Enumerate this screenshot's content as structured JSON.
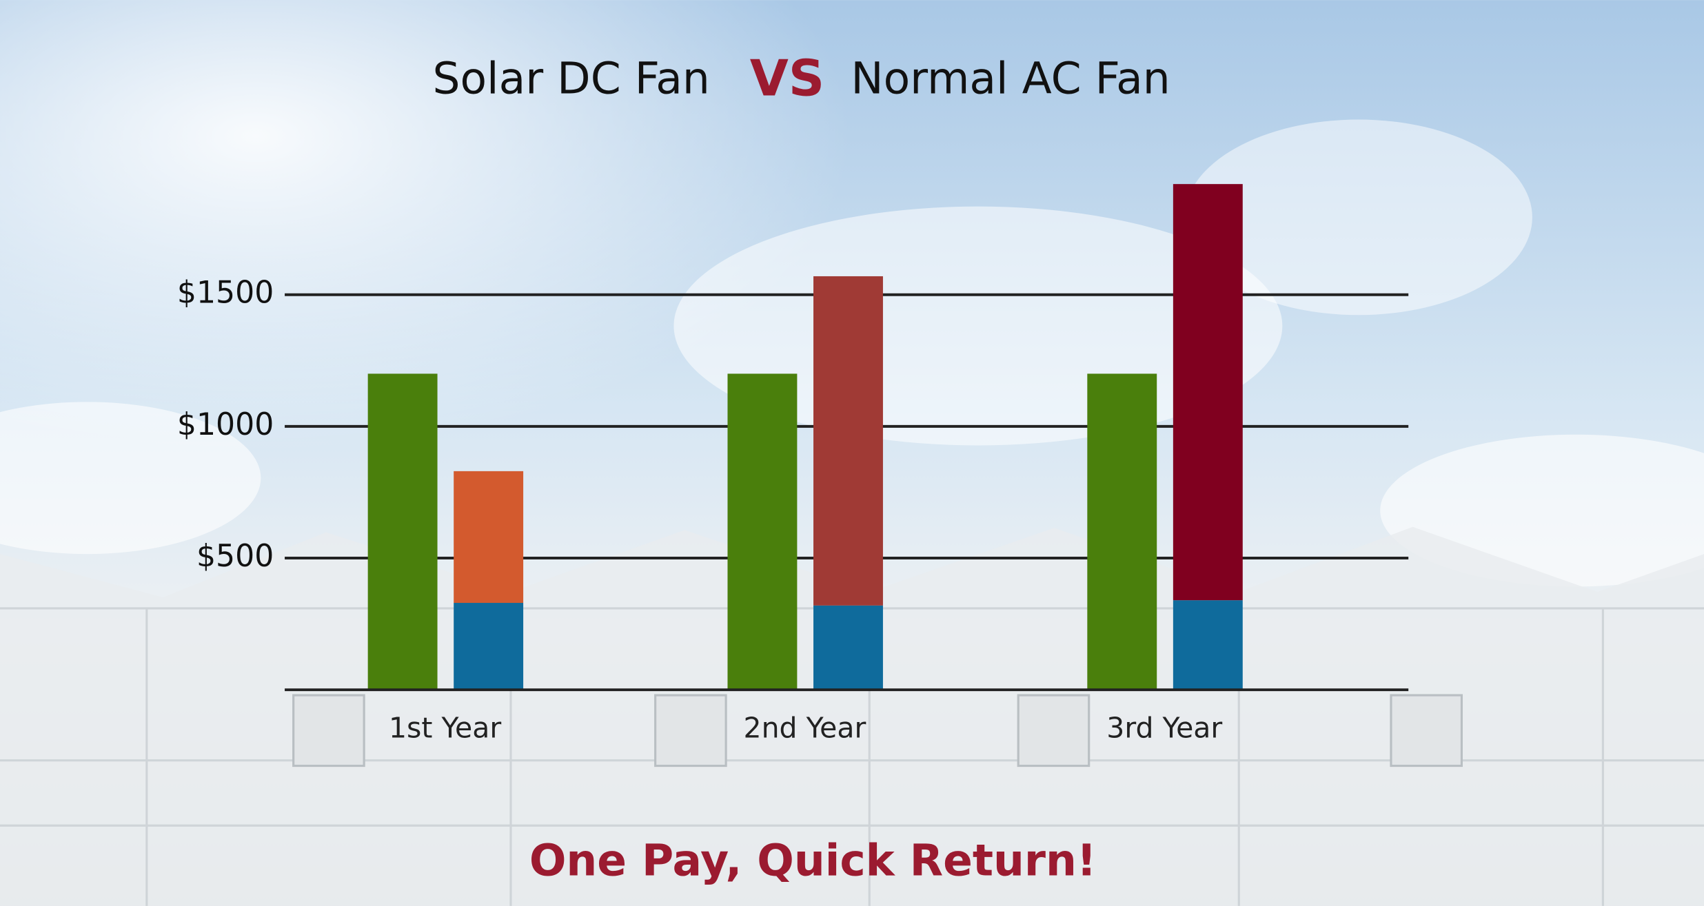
{
  "chart_data": {
    "type": "bar",
    "title": [
      "Solar DC Fan",
      "VS",
      "Normal AC Fan"
    ],
    "title_colors": [
      "#111111",
      "#9b1b30",
      "#111111"
    ],
    "footer": "One Pay, Quick Return!",
    "footer_color": "#9b1b30",
    "categories": [
      "1st Year",
      "2nd Year",
      "3rd Year"
    ],
    "series": [
      {
        "colors": [
          "#4a7f0c",
          "#4a7f0c",
          "#4a7f0c"
        ],
        "position": 0,
        "values": [
          1200,
          1200,
          1200
        ]
      },
      {
        "colors": [
          "#0f6b9c",
          "#0f6b9c",
          "#0f6b9c"
        ],
        "position": 1,
        "values": [
          330,
          320,
          340
        ]
      },
      {
        "colors": [
          "#d35a2e",
          "#a03a35",
          "#80001f"
        ],
        "position": 1,
        "values": [
          500,
          1250,
          1580
        ]
      }
    ],
    "ylim": [
      0,
      2000
    ],
    "yticks": [
      {
        "value": 500,
        "label": "$500"
      },
      {
        "value": 1000,
        "label": "$1000"
      },
      {
        "value": 1500,
        "label": "$1500"
      }
    ],
    "grid": true
  }
}
